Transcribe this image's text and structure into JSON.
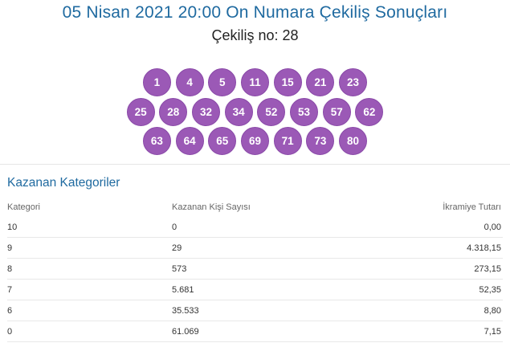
{
  "colors": {
    "title": "#1f6aa0",
    "ball": "#9b59b6",
    "ball_border": "#8a4aa8",
    "section_title": "#1f6aa0"
  },
  "header": {
    "title": "05 Nisan 2021 20:00 On Numara Çekiliş Sonuçları",
    "draw_label": "Çekiliş no: 28"
  },
  "balls": {
    "rows": [
      [
        "1",
        "4",
        "5",
        "11",
        "15",
        "21",
        "23"
      ],
      [
        "25",
        "28",
        "32",
        "34",
        "52",
        "53",
        "57",
        "62"
      ],
      [
        "63",
        "64",
        "65",
        "69",
        "71",
        "73",
        "80"
      ]
    ]
  },
  "winners": {
    "section_title": "Kazanan Kategoriler",
    "columns": [
      "Kategori",
      "Kazanan Kişi Sayısı",
      "İkramiye Tutarı"
    ],
    "rows": [
      [
        "10",
        "0",
        "0,00"
      ],
      [
        "9",
        "29",
        "4.318,15"
      ],
      [
        "8",
        "573",
        "273,15"
      ],
      [
        "7",
        "5.681",
        "52,35"
      ],
      [
        "6",
        "35.533",
        "8,80"
      ],
      [
        "0",
        "61.069",
        "7,15"
      ]
    ]
  }
}
